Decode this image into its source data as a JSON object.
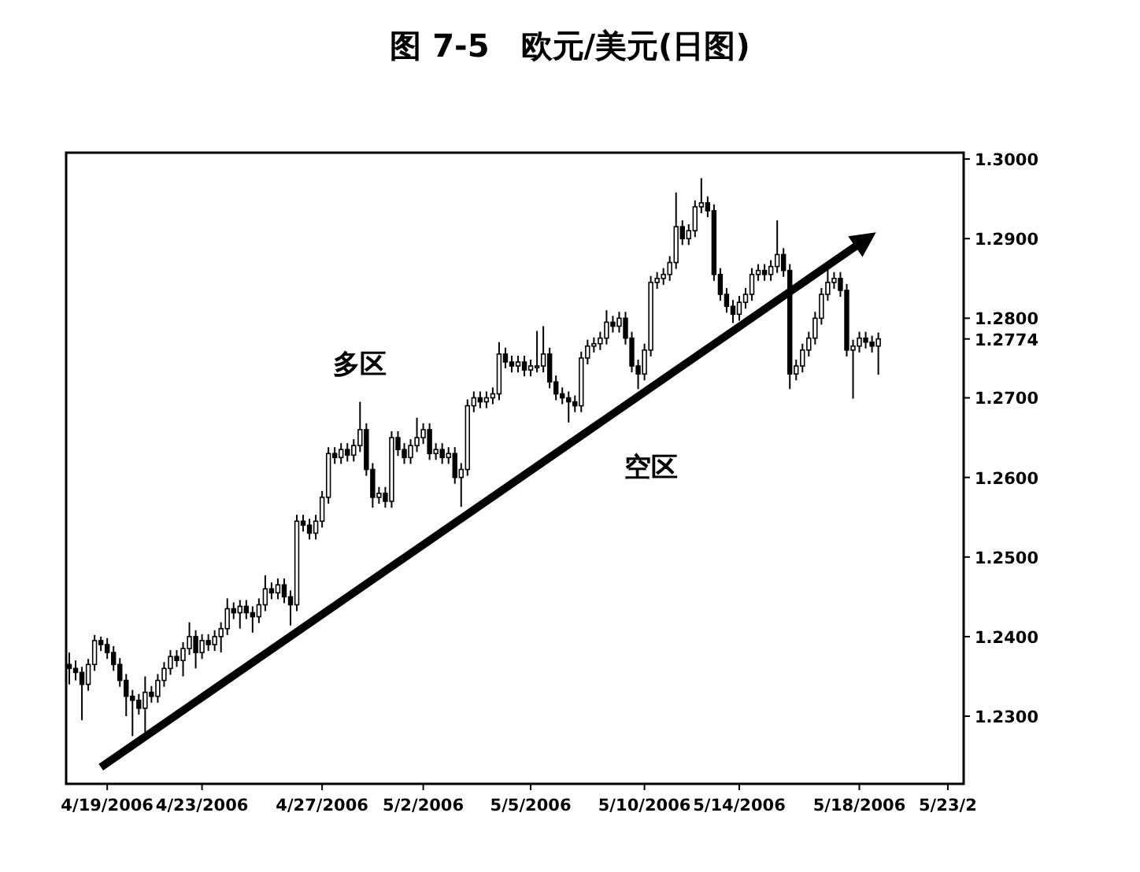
{
  "chart_data": {
    "type": "candlestick",
    "title": "图 7-5　欧元/美元(日图)",
    "annotations": [
      "多区",
      "空区"
    ],
    "categories": [
      null,
      null,
      null,
      null,
      null,
      null,
      "4/19/2006",
      null,
      null,
      null,
      null,
      null,
      null,
      null,
      null,
      null,
      null,
      null,
      null,
      null,
      null,
      "4/23/2006",
      null,
      null,
      null,
      null,
      null,
      null,
      null,
      null,
      null,
      null,
      null,
      null,
      null,
      null,
      null,
      null,
      null,
      null,
      "4/27/2006",
      null,
      null,
      null,
      null,
      null,
      null,
      null,
      null,
      null,
      null,
      null,
      null,
      null,
      null,
      null,
      "5/2/2006",
      null,
      null,
      null,
      null,
      null,
      null,
      null,
      null,
      null,
      null,
      null,
      null,
      null,
      null,
      null,
      null,
      "5/5/2006",
      null,
      null,
      null,
      null,
      null,
      null,
      null,
      null,
      null,
      null,
      null,
      null,
      null,
      null,
      null,
      null,
      null,
      "5/10/2006",
      null,
      null,
      null,
      null,
      null,
      null,
      null,
      null,
      null,
      null,
      null,
      null,
      null,
      null,
      "5/14/2006",
      null,
      null,
      null,
      null,
      null,
      null,
      null,
      null,
      null,
      null,
      null,
      null,
      null,
      null,
      null,
      null,
      null,
      null,
      "5/18/2006",
      null,
      null,
      null,
      null,
      null,
      null,
      null,
      null,
      null,
      null,
      null,
      null,
      null,
      "5/23/2",
      null,
      null
    ],
    "ohlc": [
      [
        1.2365,
        1.238,
        1.234,
        1.236
      ],
      [
        1.236,
        1.237,
        1.2345,
        1.2355
      ],
      [
        1.2355,
        1.2362,
        1.2295,
        1.234
      ],
      [
        1.234,
        1.2372,
        1.2332,
        1.2365
      ],
      [
        1.2365,
        1.2402,
        1.2357,
        1.2395
      ],
      [
        1.2395,
        1.24,
        1.2382,
        1.239
      ],
      [
        1.239,
        1.2398,
        1.2372,
        1.238
      ],
      [
        1.238,
        1.2388,
        1.2357,
        1.2365
      ],
      [
        1.2365,
        1.2373,
        1.2337,
        1.2345
      ],
      [
        1.2345,
        1.2353,
        1.23,
        1.2325
      ],
      [
        1.2325,
        1.2333,
        1.2275,
        1.232
      ],
      [
        1.232,
        1.2328,
        1.2302,
        1.231
      ],
      [
        1.231,
        1.235,
        1.228,
        1.233
      ],
      [
        1.233,
        1.2338,
        1.2317,
        1.2325
      ],
      [
        1.2325,
        1.2353,
        1.2317,
        1.2345
      ],
      [
        1.2345,
        1.2368,
        1.2337,
        1.236
      ],
      [
        1.236,
        1.2383,
        1.2352,
        1.2375
      ],
      [
        1.2375,
        1.2383,
        1.2362,
        1.237
      ],
      [
        1.237,
        1.2393,
        1.235,
        1.2385
      ],
      [
        1.2385,
        1.2418,
        1.2377,
        1.24
      ],
      [
        1.24,
        1.2408,
        1.236,
        1.238
      ],
      [
        1.238,
        1.2403,
        1.2372,
        1.2395
      ],
      [
        1.2395,
        1.2403,
        1.2382,
        1.239
      ],
      [
        1.239,
        1.2408,
        1.2382,
        1.24
      ],
      [
        1.24,
        1.2418,
        1.238,
        1.241
      ],
      [
        1.241,
        1.2448,
        1.2402,
        1.2435
      ],
      [
        1.2435,
        1.2443,
        1.2422,
        1.243
      ],
      [
        1.243,
        1.2446,
        1.241,
        1.2438
      ],
      [
        1.2438,
        1.2446,
        1.2422,
        1.243
      ],
      [
        1.243,
        1.2438,
        1.2405,
        1.2425
      ],
      [
        1.2425,
        1.2448,
        1.2417,
        1.244
      ],
      [
        1.244,
        1.2477,
        1.2432,
        1.246
      ],
      [
        1.246,
        1.2468,
        1.2447,
        1.2455
      ],
      [
        1.2455,
        1.2473,
        1.2447,
        1.2465
      ],
      [
        1.2465,
        1.2473,
        1.2442,
        1.245
      ],
      [
        1.245,
        1.2458,
        1.2414,
        1.244
      ],
      [
        1.244,
        1.2553,
        1.2432,
        1.2545
      ],
      [
        1.2545,
        1.2553,
        1.2532,
        1.254
      ],
      [
        1.254,
        1.2548,
        1.2522,
        1.253
      ],
      [
        1.253,
        1.2553,
        1.2522,
        1.2545
      ],
      [
        1.2545,
        1.2583,
        1.2537,
        1.2575
      ],
      [
        1.2575,
        1.2638,
        1.2567,
        1.263
      ],
      [
        1.263,
        1.2638,
        1.2617,
        1.2625
      ],
      [
        1.2625,
        1.2643,
        1.2617,
        1.2635
      ],
      [
        1.2635,
        1.2643,
        1.262,
        1.2628
      ],
      [
        1.2628,
        1.2648,
        1.262,
        1.264
      ],
      [
        1.264,
        1.2695,
        1.2632,
        1.266
      ],
      [
        1.266,
        1.2668,
        1.2602,
        1.261
      ],
      [
        1.261,
        1.2618,
        1.2562,
        1.2575
      ],
      [
        1.2575,
        1.2588,
        1.2567,
        1.258
      ],
      [
        1.258,
        1.2588,
        1.2562,
        1.257
      ],
      [
        1.257,
        1.2658,
        1.2562,
        1.265
      ],
      [
        1.265,
        1.2658,
        1.2627,
        1.2635
      ],
      [
        1.2635,
        1.2643,
        1.2617,
        1.2625
      ],
      [
        1.2625,
        1.2648,
        1.2617,
        1.264
      ],
      [
        1.264,
        1.2675,
        1.2632,
        1.265
      ],
      [
        1.265,
        1.2668,
        1.2642,
        1.266
      ],
      [
        1.266,
        1.2668,
        1.2622,
        1.263
      ],
      [
        1.263,
        1.2643,
        1.2622,
        1.2635
      ],
      [
        1.2635,
        1.2643,
        1.2617,
        1.2625
      ],
      [
        1.2625,
        1.2638,
        1.2617,
        1.263
      ],
      [
        1.263,
        1.2638,
        1.2592,
        1.26
      ],
      [
        1.26,
        1.2618,
        1.2563,
        1.261
      ],
      [
        1.261,
        1.2698,
        1.2602,
        1.269
      ],
      [
        1.269,
        1.2708,
        1.2682,
        1.27
      ],
      [
        1.27,
        1.2708,
        1.2687,
        1.2695
      ],
      [
        1.2695,
        1.2708,
        1.2687,
        1.27
      ],
      [
        1.27,
        1.2713,
        1.2692,
        1.2705
      ],
      [
        1.2705,
        1.277,
        1.2697,
        1.2755
      ],
      [
        1.2755,
        1.2763,
        1.2737,
        1.2745
      ],
      [
        1.2745,
        1.2753,
        1.2732,
        1.274
      ],
      [
        1.274,
        1.2753,
        1.2732,
        1.2745
      ],
      [
        1.2745,
        1.2753,
        1.2727,
        1.2735
      ],
      [
        1.2735,
        1.2748,
        1.2727,
        1.274
      ],
      [
        1.274,
        1.2784,
        1.2732,
        1.274
      ],
      [
        1.274,
        1.279,
        1.2732,
        1.2755
      ],
      [
        1.2755,
        1.2763,
        1.2712,
        1.272
      ],
      [
        1.272,
        1.2728,
        1.2697,
        1.2705
      ],
      [
        1.2705,
        1.2713,
        1.2692,
        1.27
      ],
      [
        1.27,
        1.2708,
        1.2669,
        1.2695
      ],
      [
        1.2695,
        1.2703,
        1.2682,
        1.269
      ],
      [
        1.269,
        1.2758,
        1.2682,
        1.275
      ],
      [
        1.275,
        1.2773,
        1.2742,
        1.2765
      ],
      [
        1.2765,
        1.2776,
        1.2757,
        1.2768
      ],
      [
        1.2768,
        1.2783,
        1.276,
        1.2775
      ],
      [
        1.2775,
        1.281,
        1.2767,
        1.2795
      ],
      [
        1.2795,
        1.2803,
        1.2782,
        1.279
      ],
      [
        1.279,
        1.2808,
        1.2782,
        1.28
      ],
      [
        1.28,
        1.2808,
        1.2767,
        1.2775
      ],
      [
        1.2775,
        1.2783,
        1.2732,
        1.274
      ],
      [
        1.274,
        1.2748,
        1.2711,
        1.273
      ],
      [
        1.273,
        1.2768,
        1.2722,
        1.276
      ],
      [
        1.276,
        1.2853,
        1.2752,
        1.2845
      ],
      [
        1.2845,
        1.2858,
        1.2837,
        1.285
      ],
      [
        1.285,
        1.2863,
        1.2842,
        1.2855
      ],
      [
        1.2855,
        1.2878,
        1.2847,
        1.287
      ],
      [
        1.287,
        1.2958,
        1.2862,
        1.2915
      ],
      [
        1.2915,
        1.2923,
        1.2892,
        1.29
      ],
      [
        1.29,
        1.2918,
        1.2892,
        1.291
      ],
      [
        1.291,
        1.2948,
        1.2902,
        1.294
      ],
      [
        1.294,
        1.2976,
        1.2932,
        1.2945
      ],
      [
        1.2945,
        1.2953,
        1.2927,
        1.2935
      ],
      [
        1.2935,
        1.2943,
        1.2847,
        1.2855
      ],
      [
        1.2855,
        1.2863,
        1.2822,
        1.283
      ],
      [
        1.283,
        1.2838,
        1.2807,
        1.2815
      ],
      [
        1.2815,
        1.2823,
        1.2794,
        1.2805
      ],
      [
        1.2805,
        1.2828,
        1.2797,
        1.282
      ],
      [
        1.282,
        1.2838,
        1.2812,
        1.283
      ],
      [
        1.283,
        1.2863,
        1.2822,
        1.2855
      ],
      [
        1.2855,
        1.2868,
        1.2847,
        1.286
      ],
      [
        1.286,
        1.2868,
        1.2847,
        1.2855
      ],
      [
        1.2855,
        1.2873,
        1.2847,
        1.2865
      ],
      [
        1.2865,
        1.2923,
        1.2857,
        1.288
      ],
      [
        1.288,
        1.2888,
        1.2852,
        1.286
      ],
      [
        1.286,
        1.2868,
        1.2711,
        1.273
      ],
      [
        1.273,
        1.2748,
        1.2722,
        1.274
      ],
      [
        1.274,
        1.2768,
        1.2732,
        1.276
      ],
      [
        1.276,
        1.2783,
        1.2752,
        1.2775
      ],
      [
        1.2775,
        1.2808,
        1.2767,
        1.28
      ],
      [
        1.28,
        1.2838,
        1.2792,
        1.283
      ],
      [
        1.283,
        1.2863,
        1.2822,
        1.2845
      ],
      [
        1.2845,
        1.2858,
        1.2837,
        1.285
      ],
      [
        1.285,
        1.2858,
        1.2827,
        1.2835
      ],
      [
        1.2835,
        1.2843,
        1.2752,
        1.276
      ],
      [
        1.276,
        1.2773,
        1.2699,
        1.2765
      ],
      [
        1.2765,
        1.2783,
        1.2757,
        1.2775
      ],
      [
        1.2775,
        1.2783,
        1.2762,
        1.277
      ],
      [
        1.277,
        1.2778,
        1.2757,
        1.2765
      ],
      [
        1.2765,
        1.2782,
        1.2729,
        1.2774
      ],
      null,
      null,
      null,
      null,
      null,
      null,
      null,
      null,
      null,
      null,
      null,
      null,
      null
    ],
    "series": [
      {
        "type": "line",
        "color": "#000000",
        "values": [
          null,
          null,
          null,
          null,
          null,
          1.2236,
          null,
          null,
          null,
          null,
          null,
          null,
          null,
          null,
          null,
          null,
          null,
          null,
          null,
          null,
          null,
          null,
          null,
          null,
          null,
          null,
          null,
          null,
          null,
          null,
          null,
          null,
          null,
          null,
          null,
          null,
          null,
          null,
          null,
          null,
          null,
          null,
          null,
          null,
          null,
          null,
          null,
          null,
          null,
          null,
          null,
          null,
          null,
          null,
          null,
          null,
          null,
          null,
          null,
          null,
          null,
          null,
          null,
          null,
          null,
          null,
          null,
          null,
          null,
          null,
          null,
          null,
          null,
          null,
          null,
          null,
          null,
          null,
          null,
          null,
          null,
          null,
          null,
          null,
          null,
          null,
          null,
          null,
          null,
          null,
          null,
          null,
          null,
          null,
          null,
          null,
          null,
          null,
          null,
          null,
          null,
          null,
          null,
          null,
          null,
          null,
          null,
          null,
          null,
          null,
          null,
          null,
          null,
          null,
          null,
          null,
          null,
          null,
          null,
          null,
          null,
          null,
          null,
          null,
          null,
          null,
          1.2899,
          null,
          null,
          null,
          null,
          null,
          null,
          null,
          null,
          null,
          null,
          null,
          null,
          null,
          null,
          null
        ]
      }
    ],
    "ylim": [
      1.2215,
      1.3008
    ],
    "yticks": [
      {
        "value": 1.3,
        "label": "1.3000"
      },
      {
        "value": 1.29,
        "label": "1.2900"
      },
      {
        "value": 1.28,
        "label": "1.2800"
      },
      {
        "value": 1.2774,
        "label": "1.2774"
      },
      {
        "value": 1.27,
        "label": "1.2700"
      },
      {
        "value": 1.26,
        "label": "1.2600"
      },
      {
        "value": 1.25,
        "label": "1.2500"
      },
      {
        "value": 1.24,
        "label": "1.2400"
      },
      {
        "value": 1.23,
        "label": "1.2300"
      }
    ],
    "grid": false
  }
}
